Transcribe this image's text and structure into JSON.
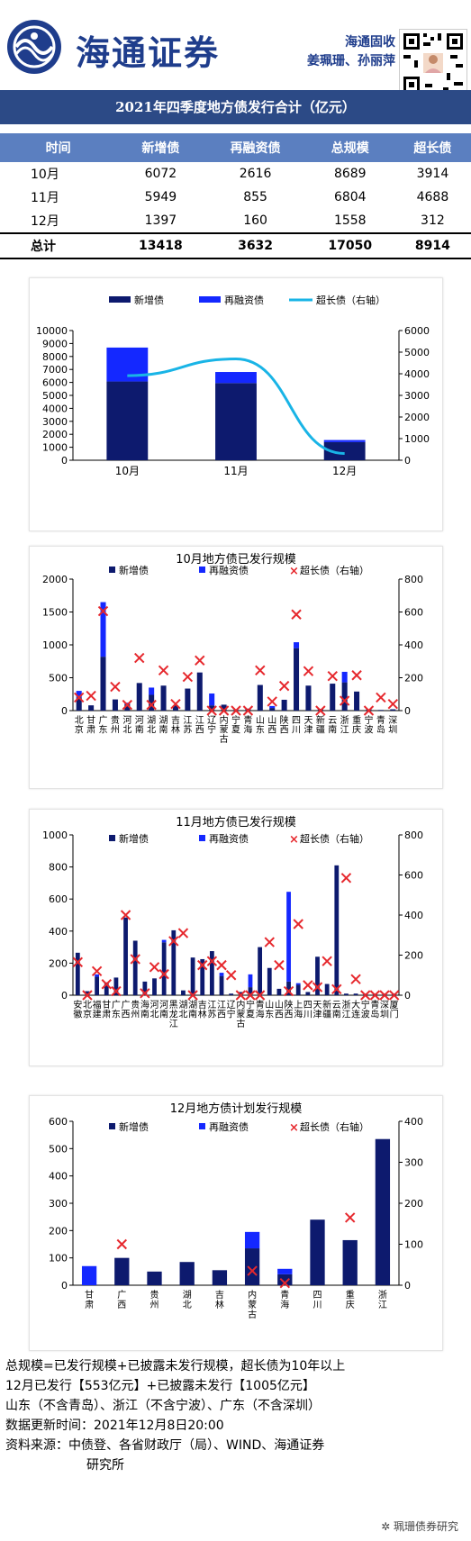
{
  "header": {
    "brand": "海通证券",
    "org": "海通固收",
    "authors": "姜珮珊、孙丽萍"
  },
  "banner_title": "2021年四季度地方债发行合计（亿元）",
  "summary_table": {
    "headers": [
      "时间",
      "新增债",
      "再融资债",
      "总规模",
      "超长债"
    ],
    "rows": [
      [
        "10月",
        "6072",
        "2616",
        "8689",
        "3914"
      ],
      [
        "11月",
        "5949",
        "855",
        "6804",
        "4688"
      ],
      [
        "12月",
        "1397",
        "160",
        "1558",
        "312"
      ]
    ],
    "total": [
      "总计",
      "13418",
      "3632",
      "17050",
      "8914"
    ]
  },
  "chart_data": [
    {
      "type": "bar",
      "title": "",
      "categories": [
        "10月",
        "11月",
        "12月"
      ],
      "stacked": true,
      "series": [
        {
          "name": "新增债",
          "values": [
            6072,
            5949,
            1397
          ],
          "axis": "left",
          "color": "#0d1a6e"
        },
        {
          "name": "再融资债",
          "values": [
            2616,
            855,
            160
          ],
          "axis": "left",
          "color": "#1428ff"
        },
        {
          "name": "超长债（右轴）",
          "values": [
            3914,
            4688,
            312
          ],
          "axis": "right",
          "type": "line",
          "color": "#19b4e6"
        }
      ],
      "ylim": [
        0,
        10000
      ],
      "yticks": [
        0,
        1000,
        2000,
        3000,
        4000,
        5000,
        6000,
        7000,
        8000,
        9000,
        10000
      ],
      "y2lim": [
        0,
        6000
      ],
      "y2ticks": [
        0,
        1000,
        2000,
        3000,
        4000,
        5000,
        6000
      ],
      "legend": "top"
    },
    {
      "type": "bar",
      "title": "10月地方债已发行规模",
      "categories": [
        "北京",
        "甘肃",
        "广东",
        "贵州",
        "河北",
        "河南",
        "湖北",
        "湖南",
        "吉林",
        "江苏",
        "江西",
        "辽宁",
        "内蒙古",
        "宁夏",
        "青海",
        "山东",
        "山西",
        "陕西",
        "四川",
        "天津",
        "新疆",
        "云南",
        "浙江",
        "重庆",
        "宁波",
        "青岛",
        "深圳"
      ],
      "stacked": true,
      "series": [
        {
          "name": "新增债",
          "values": [
            200,
            80,
            820,
            170,
            95,
            420,
            240,
            380,
            80,
            335,
            580,
            80,
            90,
            10,
            30,
            390,
            40,
            165,
            950,
            380,
            25,
            410,
            430,
            290,
            20,
            10,
            20
          ],
          "axis": "left",
          "color": "#0d1a6e"
        },
        {
          "name": "再融资债",
          "values": [
            100,
            0,
            830,
            0,
            25,
            0,
            110,
            0,
            0,
            0,
            0,
            180,
            0,
            0,
            0,
            0,
            30,
            0,
            90,
            0,
            0,
            0,
            160,
            0,
            0,
            0,
            0
          ],
          "axis": "left",
          "color": "#1428ff"
        },
        {
          "name": "超长债（右轴）",
          "values": [
            80,
            90,
            605,
            145,
            35,
            320,
            35,
            245,
            40,
            205,
            305,
            0,
            0,
            0,
            0,
            245,
            55,
            150,
            585,
            240,
            0,
            210,
            60,
            215,
            0,
            80,
            40
          ],
          "axis": "right",
          "type": "scatter",
          "color": "#e6282d"
        }
      ],
      "ylim": [
        0,
        2000
      ],
      "yticks": [
        0,
        500,
        1000,
        1500,
        2000
      ],
      "y2lim": [
        0,
        800
      ],
      "y2ticks": [
        0,
        200,
        400,
        600,
        800
      ],
      "legend": "top"
    },
    {
      "type": "bar",
      "title": "11月地方债已发行规模",
      "categories": [
        "安徽",
        "北京",
        "福建",
        "甘肃",
        "广东",
        "广西",
        "贵州",
        "海南",
        "河北",
        "河南",
        "黑龙江",
        "湖北",
        "湖南",
        "吉林",
        "江苏",
        "江西",
        "辽宁",
        "内蒙古",
        "宁夏",
        "青海",
        "山东",
        "山西",
        "陕西",
        "上海",
        "四川",
        "天津",
        "新疆",
        "云南",
        "浙江",
        "大连",
        "宁波",
        "青岛",
        "深圳",
        "厦门"
      ],
      "stacked": true,
      "series": [
        {
          "name": "新增债",
          "values": [
            265,
            25,
            115,
            80,
            110,
            485,
            340,
            85,
            105,
            330,
            405,
            30,
            235,
            225,
            275,
            120,
            10,
            20,
            50,
            300,
            170,
            40,
            85,
            65,
            20,
            240,
            70,
            810,
            10,
            10,
            10,
            10,
            10,
            10
          ],
          "axis": "left",
          "color": "#0d1a6e"
        },
        {
          "name": "再融资债",
          "values": [
            0,
            0,
            15,
            0,
            0,
            0,
            0,
            0,
            0,
            15,
            0,
            0,
            0,
            0,
            0,
            20,
            0,
            0,
            80,
            0,
            0,
            0,
            560,
            10,
            0,
            0,
            0,
            0,
            0,
            0,
            0,
            0,
            0,
            0
          ],
          "axis": "left",
          "color": "#1428ff"
        },
        {
          "name": "超长债（右轴）",
          "values": [
            165,
            0,
            120,
            55,
            20,
            400,
            180,
            10,
            140,
            105,
            270,
            310,
            0,
            150,
            170,
            150,
            100,
            0,
            0,
            0,
            265,
            150,
            20,
            355,
            50,
            40,
            170,
            30,
            585,
            80,
            0,
            0,
            0,
            0
          ],
          "axis": "right",
          "type": "scatter",
          "color": "#e6282d"
        }
      ],
      "ylim": [
        0,
        1000
      ],
      "yticks": [
        0,
        200,
        400,
        600,
        800,
        1000
      ],
      "y2lim": [
        0,
        800
      ],
      "y2ticks": [
        0,
        200,
        400,
        600,
        800
      ],
      "legend": "top"
    },
    {
      "type": "bar",
      "title": "12月地方债计划发行规模",
      "categories": [
        "甘肃",
        "广西",
        "贵州",
        "湖北",
        "吉林",
        "内蒙古",
        "青海",
        "四川",
        "重庆",
        "浙江"
      ],
      "stacked": true,
      "series": [
        {
          "name": "新增债",
          "values": [
            0,
            100,
            50,
            85,
            55,
            135,
            40,
            240,
            165,
            535
          ],
          "axis": "left",
          "color": "#0d1a6e"
        },
        {
          "name": "再融资债",
          "values": [
            70,
            0,
            0,
            0,
            0,
            60,
            20,
            0,
            0,
            0
          ],
          "axis": "left",
          "color": "#1428ff"
        },
        {
          "name": "超长债（右轴）",
          "values": [
            null,
            100,
            null,
            null,
            null,
            35,
            5,
            null,
            165,
            null
          ],
          "axis": "right",
          "type": "scatter",
          "color": "#e6282d"
        }
      ],
      "ylim": [
        0,
        600
      ],
      "yticks": [
        0,
        100,
        200,
        300,
        400,
        500,
        600
      ],
      "y2lim": [
        0,
        400
      ],
      "y2ticks": [
        0,
        100,
        200,
        300,
        400
      ],
      "legend": "top"
    }
  ],
  "notes": {
    "line1": "总规模=已发行规模+已披露未发行规模，超长债为10年以上",
    "line2": "12月已发行【553亿元】+已披露未发行【1005亿元】",
    "line3": "山东（不含青岛）、浙江（不含宁波）、广东（不含深圳）",
    "line4": "数据更新时间：2021年12月8日20:00",
    "line5": "资料来源：中债登、各省财政厅（局）、WIND、海通证券",
    "line6": "研究所"
  },
  "watermark": "珮珊债券研究"
}
